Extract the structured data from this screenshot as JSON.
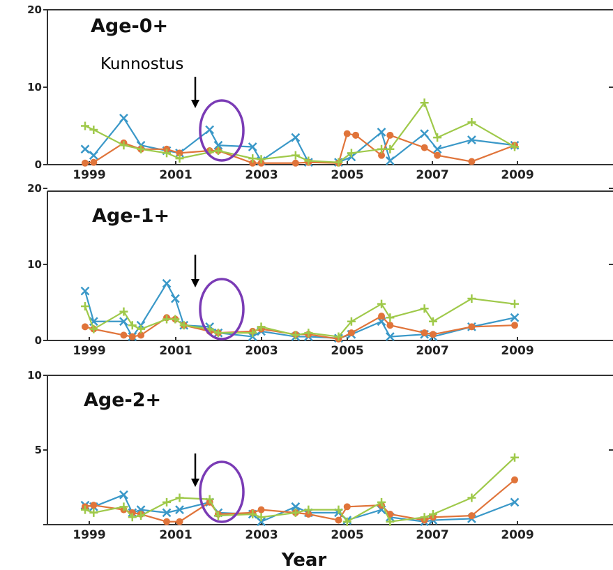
{
  "chart_data": [
    {
      "type": "line",
      "title": "Age-0+",
      "ylim": [
        0,
        20
      ],
      "yticks": [
        "0",
        "10",
        "20"
      ],
      "xticks": [
        "1999",
        "2001",
        "2003",
        "2005",
        "2007",
        "2009"
      ],
      "series": [
        {
          "color": "#3a98c8",
          "marker": "x",
          "points": [
            [
              1998.9,
              2.0
            ],
            [
              1999.1,
              1.2
            ],
            [
              1999.8,
              6.0
            ],
            [
              2000.2,
              2.5
            ],
            [
              2000.8,
              1.8
            ],
            [
              2001.1,
              1.5
            ],
            [
              2001.8,
              4.5
            ],
            [
              2002.0,
              2.5
            ],
            [
              2002.8,
              2.3
            ],
            [
              2003.0,
              0.5
            ],
            [
              2003.8,
              3.5
            ],
            [
              2004.1,
              0.3
            ],
            [
              2004.8,
              0.3
            ],
            [
              2005.1,
              1.0
            ],
            [
              2005.8,
              4.2
            ],
            [
              2006.0,
              0.5
            ],
            [
              2006.8,
              4.0
            ],
            [
              2007.1,
              2.0
            ],
            [
              2007.9,
              3.2
            ],
            [
              2008.9,
              2.5
            ]
          ]
        },
        {
          "color": "#e0743a",
          "marker": "o",
          "points": [
            [
              1998.9,
              0.2
            ],
            [
              1999.1,
              0.3
            ],
            [
              1999.8,
              2.8
            ],
            [
              2000.2,
              2.0
            ],
            [
              2000.8,
              2.0
            ],
            [
              2001.1,
              1.5
            ],
            [
              2001.8,
              1.8
            ],
            [
              2002.0,
              1.8
            ],
            [
              2002.8,
              0.2
            ],
            [
              2003.0,
              0.2
            ],
            [
              2003.8,
              0.2
            ],
            [
              2004.1,
              0.3
            ],
            [
              2004.8,
              0.2
            ],
            [
              2005.0,
              4.0
            ],
            [
              2005.2,
              3.8
            ],
            [
              2005.8,
              1.2
            ],
            [
              2006.0,
              3.8
            ],
            [
              2006.8,
              2.2
            ],
            [
              2007.1,
              1.2
            ],
            [
              2007.9,
              0.4
            ],
            [
              2008.9,
              2.5
            ]
          ]
        },
        {
          "color": "#9fc94a",
          "marker": "+",
          "points": [
            [
              1998.9,
              5.0
            ],
            [
              1999.1,
              4.5
            ],
            [
              1999.8,
              2.5
            ],
            [
              2000.2,
              2.0
            ],
            [
              2000.8,
              1.5
            ],
            [
              2001.1,
              0.8
            ],
            [
              2001.8,
              1.6
            ],
            [
              2002.0,
              1.8
            ],
            [
              2002.8,
              0.8
            ],
            [
              2003.0,
              0.7
            ],
            [
              2003.8,
              1.2
            ],
            [
              2004.1,
              0.5
            ],
            [
              2004.8,
              0.3
            ],
            [
              2005.1,
              1.5
            ],
            [
              2005.8,
              2.0
            ],
            [
              2006.0,
              2.0
            ],
            [
              2006.8,
              8.0
            ],
            [
              2007.1,
              3.5
            ],
            [
              2007.9,
              5.5
            ],
            [
              2008.9,
              2.3
            ]
          ]
        }
      ]
    },
    {
      "type": "line",
      "title": "Age-1+",
      "ylim": [
        0,
        20
      ],
      "yticks": [
        "0",
        "10",
        "20"
      ],
      "xticks": [
        "1999",
        "2001",
        "2003",
        "2005",
        "2007",
        "2009"
      ],
      "series": [
        {
          "color": "#3a98c8",
          "marker": "x",
          "points": [
            [
              1998.9,
              6.5
            ],
            [
              1999.1,
              2.5
            ],
            [
              1999.8,
              2.5
            ],
            [
              2000.0,
              0.5
            ],
            [
              2000.2,
              2.0
            ],
            [
              2000.8,
              7.5
            ],
            [
              2001.0,
              5.5
            ],
            [
              2001.2,
              2.0
            ],
            [
              2001.8,
              1.8
            ],
            [
              2002.0,
              1.0
            ],
            [
              2002.8,
              0.5
            ],
            [
              2003.0,
              1.2
            ],
            [
              2003.8,
              0.5
            ],
            [
              2004.1,
              0.5
            ],
            [
              2004.8,
              0.3
            ],
            [
              2005.1,
              0.8
            ],
            [
              2005.8,
              2.5
            ],
            [
              2006.0,
              0.5
            ],
            [
              2006.8,
              0.8
            ],
            [
              2007.0,
              0.5
            ],
            [
              2007.9,
              1.8
            ],
            [
              2008.9,
              3.0
            ]
          ]
        },
        {
          "color": "#e0743a",
          "marker": "o",
          "points": [
            [
              1998.9,
              1.8
            ],
            [
              1999.1,
              1.5
            ],
            [
              1999.8,
              0.7
            ],
            [
              2000.0,
              0.5
            ],
            [
              2000.2,
              0.7
            ],
            [
              2000.8,
              3.0
            ],
            [
              2001.0,
              2.8
            ],
            [
              2001.2,
              2.0
            ],
            [
              2001.8,
              1.2
            ],
            [
              2002.0,
              1.0
            ],
            [
              2002.8,
              1.2
            ],
            [
              2003.0,
              1.5
            ],
            [
              2003.8,
              0.8
            ],
            [
              2004.1,
              0.8
            ],
            [
              2004.8,
              0.2
            ],
            [
              2005.1,
              1.0
            ],
            [
              2005.8,
              3.2
            ],
            [
              2006.0,
              2.0
            ],
            [
              2006.8,
              1.0
            ],
            [
              2007.0,
              0.8
            ],
            [
              2007.9,
              1.8
            ],
            [
              2008.9,
              2.0
            ]
          ]
        },
        {
          "color": "#9fc94a",
          "marker": "+",
          "points": [
            [
              1998.9,
              4.5
            ],
            [
              1999.1,
              1.5
            ],
            [
              1999.8,
              3.8
            ],
            [
              2000.0,
              2.0
            ],
            [
              2000.2,
              1.5
            ],
            [
              2000.8,
              2.8
            ],
            [
              2001.0,
              2.8
            ],
            [
              2001.2,
              2.0
            ],
            [
              2001.8,
              1.5
            ],
            [
              2002.0,
              1.0
            ],
            [
              2002.8,
              1.0
            ],
            [
              2003.0,
              1.8
            ],
            [
              2003.8,
              0.7
            ],
            [
              2004.1,
              1.0
            ],
            [
              2004.8,
              0.5
            ],
            [
              2005.1,
              2.5
            ],
            [
              2005.8,
              4.8
            ],
            [
              2006.0,
              3.0
            ],
            [
              2006.8,
              4.2
            ],
            [
              2007.0,
              2.5
            ],
            [
              2007.9,
              5.5
            ],
            [
              2008.9,
              4.8
            ]
          ]
        }
      ]
    },
    {
      "type": "line",
      "title": "Age-2+",
      "ylim": [
        0,
        10
      ],
      "yticks": [
        "5",
        "10"
      ],
      "xticks": [
        "1999",
        "2001",
        "2003",
        "2005",
        "2007",
        "2009"
      ],
      "series": [
        {
          "color": "#3a98c8",
          "marker": "x",
          "points": [
            [
              1998.9,
              1.3
            ],
            [
              1999.1,
              1.2
            ],
            [
              1999.8,
              2.0
            ],
            [
              2000.0,
              0.8
            ],
            [
              2000.2,
              1.0
            ],
            [
              2000.8,
              0.8
            ],
            [
              2001.1,
              1.0
            ],
            [
              2001.8,
              1.5
            ],
            [
              2002.0,
              0.8
            ],
            [
              2002.8,
              0.7
            ],
            [
              2003.0,
              0.2
            ],
            [
              2003.8,
              1.2
            ],
            [
              2004.1,
              0.8
            ],
            [
              2004.8,
              0.8
            ],
            [
              2005.0,
              0.3
            ],
            [
              2005.8,
              1.0
            ],
            [
              2006.0,
              0.5
            ],
            [
              2006.8,
              0.2
            ],
            [
              2007.0,
              0.3
            ],
            [
              2007.9,
              0.4
            ],
            [
              2008.9,
              1.5
            ]
          ]
        },
        {
          "color": "#e0743a",
          "marker": "o",
          "points": [
            [
              1998.9,
              1.2
            ],
            [
              1999.1,
              1.3
            ],
            [
              1999.8,
              1.0
            ],
            [
              2000.0,
              0.8
            ],
            [
              2000.2,
              0.7
            ],
            [
              2000.8,
              0.2
            ],
            [
              2001.1,
              0.2
            ],
            [
              2001.8,
              1.5
            ],
            [
              2002.0,
              0.7
            ],
            [
              2002.8,
              0.8
            ],
            [
              2003.0,
              1.0
            ],
            [
              2003.8,
              0.8
            ],
            [
              2004.1,
              0.7
            ],
            [
              2004.8,
              0.3
            ],
            [
              2005.0,
              1.2
            ],
            [
              2005.8,
              1.3
            ],
            [
              2006.0,
              0.7
            ],
            [
              2006.8,
              0.3
            ],
            [
              2007.0,
              0.5
            ],
            [
              2007.9,
              0.6
            ],
            [
              2008.9,
              3.0
            ]
          ]
        },
        {
          "color": "#9fc94a",
          "marker": "+",
          "points": [
            [
              1998.9,
              1.0
            ],
            [
              1999.1,
              0.8
            ],
            [
              1999.8,
              1.2
            ],
            [
              2000.0,
              0.5
            ],
            [
              2000.2,
              0.6
            ],
            [
              2000.8,
              1.5
            ],
            [
              2001.1,
              1.8
            ],
            [
              2001.8,
              1.7
            ],
            [
              2002.0,
              0.6
            ],
            [
              2002.8,
              0.7
            ],
            [
              2003.0,
              0.5
            ],
            [
              2003.8,
              0.8
            ],
            [
              2004.1,
              1.0
            ],
            [
              2004.8,
              1.0
            ],
            [
              2005.0,
              0.2
            ],
            [
              2005.8,
              1.5
            ],
            [
              2006.0,
              0.2
            ],
            [
              2006.8,
              0.5
            ],
            [
              2007.0,
              0.7
            ],
            [
              2007.9,
              1.8
            ],
            [
              2008.9,
              4.5
            ]
          ]
        }
      ]
    }
  ],
  "annotation": "Kunnostus",
  "xlabel": "Year"
}
